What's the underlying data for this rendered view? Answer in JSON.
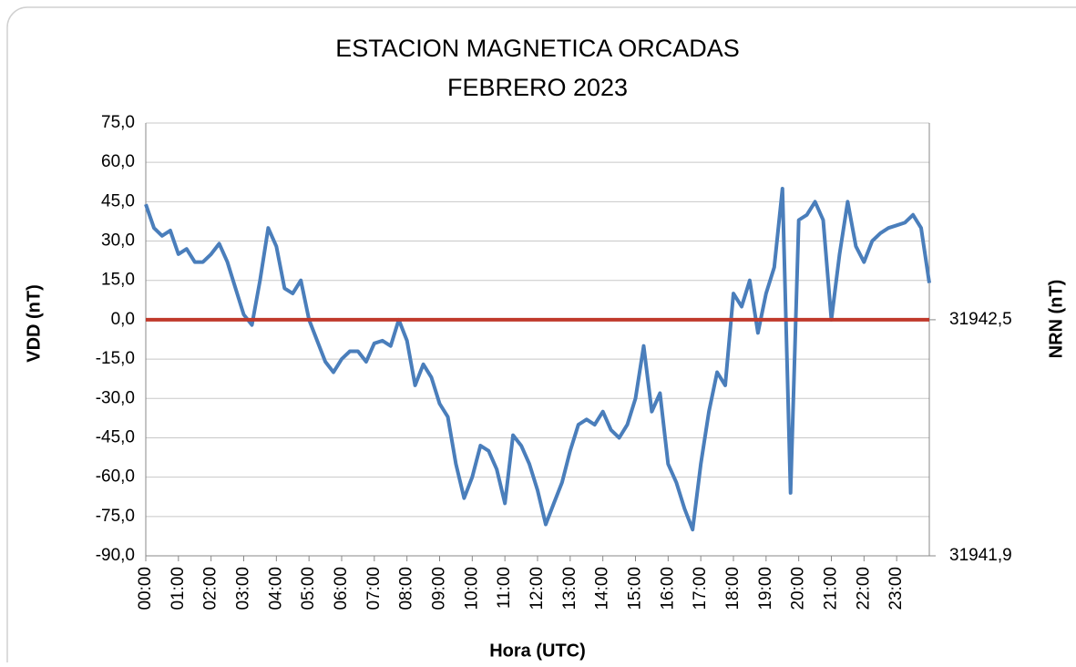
{
  "chart_data": {
    "type": "line",
    "title": "ESTACION MAGNETICA ORCADAS",
    "subtitle": "FEBRERO 2023",
    "x_label": "Hora (UTC)",
    "y_label": "VDD (nT)",
    "y2_label": "NRN (nT)",
    "x": [
      0,
      0.25,
      0.5,
      0.75,
      1,
      1.25,
      1.5,
      1.75,
      2,
      2.25,
      2.5,
      2.75,
      3,
      3.25,
      3.5,
      3.75,
      4,
      4.25,
      4.5,
      4.75,
      5,
      5.25,
      5.5,
      5.75,
      6,
      6.25,
      6.5,
      6.75,
      7,
      7.25,
      7.5,
      7.75,
      8,
      8.25,
      8.5,
      8.75,
      9,
      9.25,
      9.5,
      9.75,
      10,
      10.25,
      10.5,
      10.75,
      11,
      11.25,
      11.5,
      11.75,
      12,
      12.25,
      12.5,
      12.75,
      13,
      13.25,
      13.5,
      13.75,
      14,
      14.25,
      14.5,
      14.75,
      15,
      15.25,
      15.5,
      15.75,
      16,
      16.25,
      16.5,
      16.75,
      17,
      17.25,
      17.5,
      17.75,
      18,
      18.25,
      18.5,
      18.75,
      19,
      19.25,
      19.5,
      19.75,
      20,
      20.25,
      20.5,
      20.75,
      21,
      21.25,
      21.5,
      21.75,
      22,
      22.25,
      22.5,
      22.75,
      23,
      23.25,
      23.5,
      23.75,
      24
    ],
    "series": [
      {
        "name": "VDD",
        "color": "#4a7ebb",
        "values": [
          44,
          35,
          32,
          34,
          25,
          27,
          22,
          22,
          25,
          29,
          22,
          12,
          2,
          -2,
          15,
          35,
          28,
          12,
          10,
          15,
          0,
          -8,
          -16,
          -20,
          -15,
          -12,
          -12,
          -16,
          -9,
          -8,
          -10,
          0,
          -8,
          -25,
          -17,
          -22,
          -32,
          -37,
          -55,
          -68,
          -60,
          -48,
          -50,
          -57,
          -70,
          -44,
          -48,
          -55,
          -65,
          -78,
          -70,
          -62,
          -50,
          -40,
          -38,
          -40,
          -35,
          -42,
          -45,
          -40,
          -30,
          -10,
          -35,
          -28,
          -55,
          -62,
          -72,
          -80,
          -55,
          -35,
          -20,
          -25,
          10,
          5,
          15,
          -5,
          10,
          20,
          50,
          -66,
          38,
          40,
          45,
          38,
          0,
          25,
          45,
          28,
          22,
          30,
          33,
          35,
          36,
          37,
          40,
          35,
          14
        ]
      }
    ],
    "reference_line": {
      "value": 0,
      "color": "#c0392b"
    },
    "xlim": [
      0,
      24
    ],
    "xticks": [
      {
        "value": 0,
        "label": "00:00"
      },
      {
        "value": 1,
        "label": "01:00"
      },
      {
        "value": 2,
        "label": "02:00"
      },
      {
        "value": 3,
        "label": "03:00"
      },
      {
        "value": 4,
        "label": "04:00"
      },
      {
        "value": 5,
        "label": "05:00"
      },
      {
        "value": 6,
        "label": "06:00"
      },
      {
        "value": 7,
        "label": "07:00"
      },
      {
        "value": 8,
        "label": "08:00"
      },
      {
        "value": 9,
        "label": "09:00"
      },
      {
        "value": 10,
        "label": "10:00"
      },
      {
        "value": 11,
        "label": "11:00"
      },
      {
        "value": 12,
        "label": "12:00"
      },
      {
        "value": 13,
        "label": "13:00"
      },
      {
        "value": 14,
        "label": "14:00"
      },
      {
        "value": 15,
        "label": "15:00"
      },
      {
        "value": 16,
        "label": "16:00"
      },
      {
        "value": 17,
        "label": "17:00"
      },
      {
        "value": 18,
        "label": "18:00"
      },
      {
        "value": 19,
        "label": "19:00"
      },
      {
        "value": 20,
        "label": "20:00"
      },
      {
        "value": 21,
        "label": "21:00"
      },
      {
        "value": 22,
        "label": "22:00"
      },
      {
        "value": 23,
        "label": "23:00"
      }
    ],
    "ylim": [
      -90,
      75
    ],
    "yticks": [
      {
        "value": -90,
        "label": "-90,0"
      },
      {
        "value": -75,
        "label": "-75,0"
      },
      {
        "value": -60,
        "label": "-60,0"
      },
      {
        "value": -45,
        "label": "-45,0"
      },
      {
        "value": -30,
        "label": "-30,0"
      },
      {
        "value": -15,
        "label": "-15,0"
      },
      {
        "value": 0,
        "label": "0,0"
      },
      {
        "value": 15,
        "label": "15,0"
      },
      {
        "value": 30,
        "label": "30,0"
      },
      {
        "value": 45,
        "label": "45,0"
      },
      {
        "value": 60,
        "label": "60,0"
      },
      {
        "value": 75,
        "label": "75,0"
      }
    ],
    "y2lim": [
      31941.9,
      31943.0
    ],
    "y2ticks": [
      {
        "value": 31941.9,
        "label": "31941,9"
      },
      {
        "value": 31942.5,
        "label": "31942,5"
      }
    ],
    "grid": true
  }
}
